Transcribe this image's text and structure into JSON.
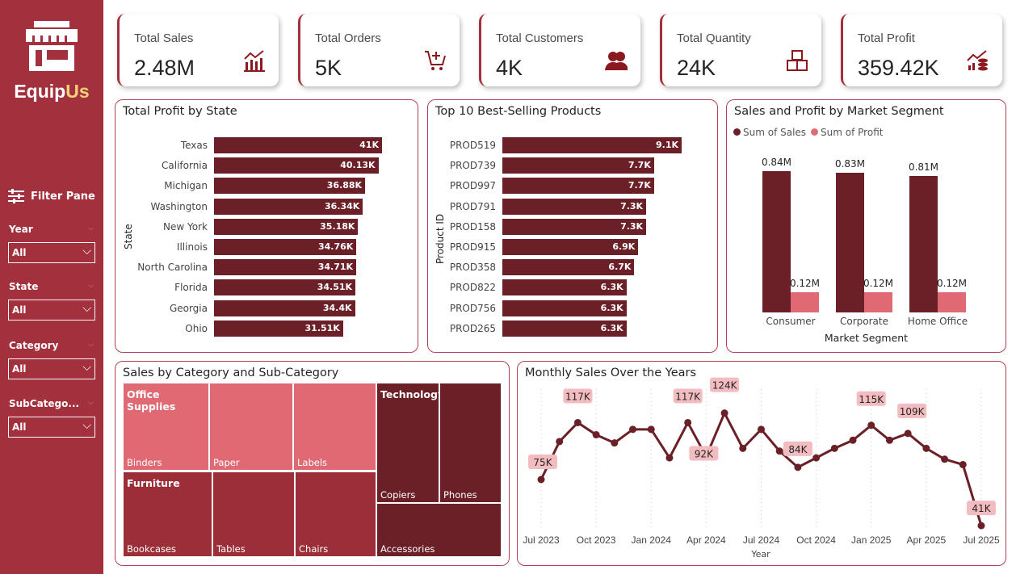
{
  "brand": {
    "name_a": "Equip",
    "name_b": "Us",
    "logo_icon": "storefront-icon"
  },
  "filters": {
    "title": "Filter Pane",
    "items": [
      {
        "label": "Year",
        "value": "All"
      },
      {
        "label": "State",
        "value": "All"
      },
      {
        "label": "Category",
        "value": "All"
      },
      {
        "label": "SubCatego...",
        "value": "All"
      }
    ]
  },
  "kpis": [
    {
      "title": "Total Sales",
      "value": "2.48M",
      "icon": "chart-growth-icon"
    },
    {
      "title": "Total Orders",
      "value": "5K",
      "icon": "cart-add-icon"
    },
    {
      "title": "Total Customers",
      "value": "4K",
      "icon": "users-icon"
    },
    {
      "title": "Total Quantity",
      "value": "24K",
      "icon": "boxes-icon"
    },
    {
      "title": "Total Profit",
      "value": "359.42K",
      "icon": "coins-growth-icon"
    }
  ],
  "colors": {
    "sidebar": "#a3313d",
    "dark": "#6b1f27",
    "light": "#e06a74",
    "accent": "#f2d27a"
  },
  "chart_data": [
    {
      "type": "bar",
      "orientation": "horizontal",
      "title": "Total Profit by State",
      "ylabel": "State",
      "categories": [
        "Texas",
        "California",
        "Michigan",
        "Washington",
        "New York",
        "Illinois",
        "North Carolina",
        "Florida",
        "Georgia",
        "Ohio"
      ],
      "values": [
        41000,
        40130,
        36880,
        36340,
        35180,
        34760,
        34710,
        34510,
        34400,
        31510
      ],
      "labels": [
        "41K",
        "40.13K",
        "36.88K",
        "36.34K",
        "35.18K",
        "34.76K",
        "34.71K",
        "34.51K",
        "34.4K",
        "31.51K"
      ]
    },
    {
      "type": "bar",
      "orientation": "horizontal",
      "title": "Top 10 Best-Selling Products",
      "ylabel": "Product ID",
      "categories": [
        "PROD519",
        "PROD739",
        "PROD997",
        "PROD791",
        "PROD158",
        "PROD915",
        "PROD358",
        "PROD822",
        "PROD756",
        "PROD265"
      ],
      "values": [
        9100,
        7700,
        7700,
        7300,
        7300,
        6900,
        6700,
        6300,
        6300,
        6300
      ],
      "labels": [
        "9.1K",
        "7.7K",
        "7.7K",
        "7.3K",
        "7.3K",
        "6.9K",
        "6.7K",
        "6.3K",
        "6.3K",
        "6.3K"
      ]
    },
    {
      "type": "bar",
      "title": "Sales and Profit by Market Segment",
      "xlabel": "Market Segment",
      "legend": "top-left",
      "categories": [
        "Consumer",
        "Corporate",
        "Home Office"
      ],
      "series": [
        {
          "name": "Sum of Sales",
          "values": [
            0.84,
            0.83,
            0.81
          ],
          "labels": [
            "0.84M",
            "0.83M",
            "0.81M"
          ]
        },
        {
          "name": "Sum of Profit",
          "values": [
            0.12,
            0.12,
            0.12
          ],
          "labels": [
            "0.12M",
            "0.12M",
            "0.12M"
          ]
        }
      ]
    },
    {
      "type": "heatmap",
      "subtype": "treemap",
      "title": "Sales by Category and Sub-Category",
      "groups": [
        {
          "name": "Office Supplies",
          "children": [
            "Binders",
            "Paper",
            "Labels"
          ]
        },
        {
          "name": "Furniture",
          "children": [
            "Bookcases",
            "Tables",
            "Chairs"
          ]
        },
        {
          "name": "Technology",
          "children": [
            "Copiers",
            "Phones",
            "Accessories"
          ]
        }
      ]
    },
    {
      "type": "line",
      "title": "Monthly Sales Over the Years",
      "xlabel": "Year",
      "x": [
        "2023-07",
        "2023-08",
        "2023-09",
        "2023-10",
        "2023-11",
        "2023-12",
        "2024-01",
        "2024-02",
        "2024-03",
        "2024-04",
        "2024-05",
        "2024-06",
        "2024-07",
        "2024-08",
        "2024-09",
        "2024-10",
        "2024-11",
        "2024-12",
        "2025-01",
        "2025-02",
        "2025-03",
        "2025-04",
        "2025-05",
        "2025-06",
        "2025-07"
      ],
      "values": [
        75,
        103,
        117,
        108,
        102,
        112,
        112,
        91,
        117,
        92,
        124,
        98,
        112,
        96,
        84,
        91,
        98,
        104,
        115,
        104,
        109,
        98,
        90,
        86,
        41
      ],
      "data_labels": {
        "0": "75K",
        "2": "117K",
        "8": "117K",
        "9": "92K",
        "10": "124K",
        "14": "84K",
        "18": "115K",
        "20": "109K",
        "24": "41K"
      },
      "xticks": [
        "Jul 2023",
        "Oct 2023",
        "Jan 2024",
        "Apr 2024",
        "Jul 2024",
        "Oct 2024",
        "Jan 2025",
        "Apr 2025",
        "Jul 2025"
      ],
      "grid": "vertical dotted"
    }
  ]
}
